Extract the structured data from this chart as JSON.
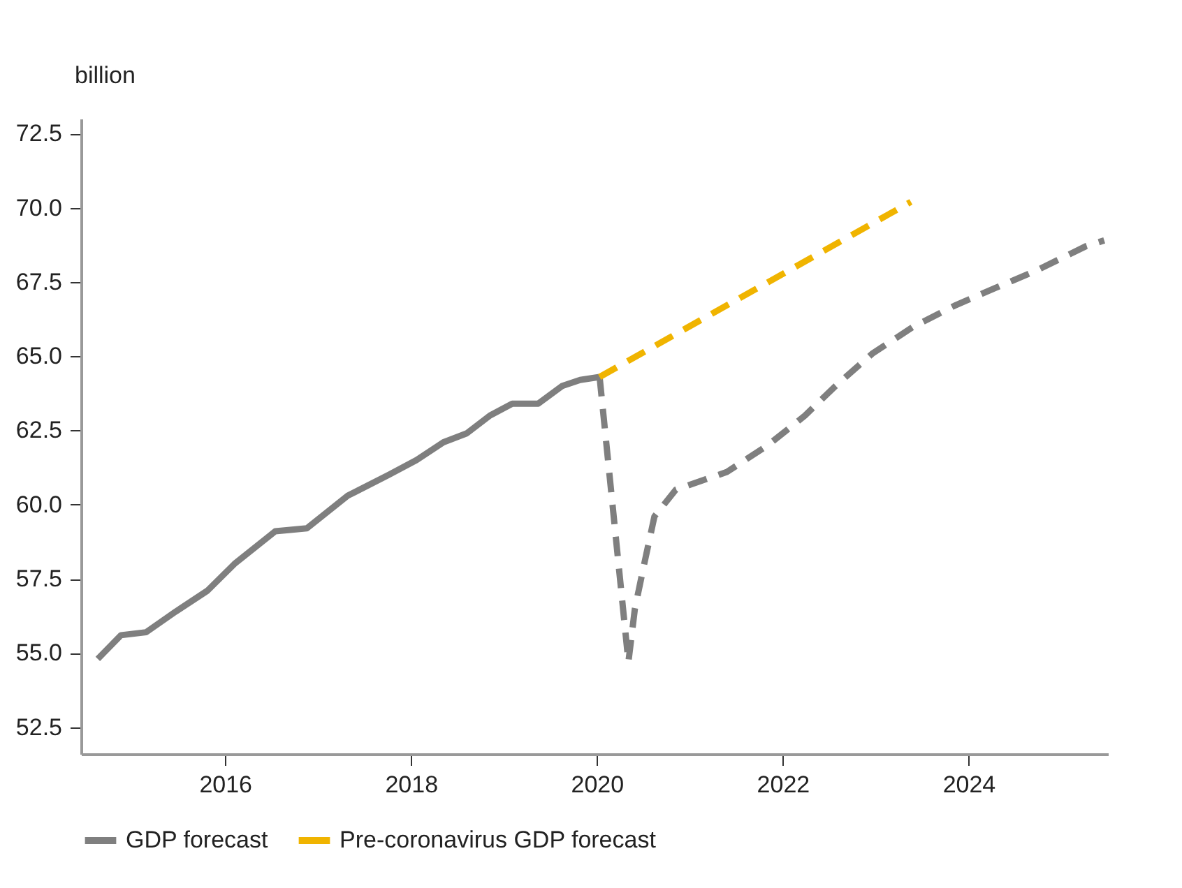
{
  "chart_data": {
    "type": "line",
    "ylabel": "billion",
    "xlim": [
      2014.45,
      2025.5
    ],
    "xticks": [
      2016,
      2018,
      2020,
      2022,
      2024
    ],
    "ylim": [
      51.6,
      73.0
    ],
    "yticks": [
      52.5,
      {
        "value": 55,
        "label": "55.0"
      },
      57.5,
      {
        "value": 60,
        "label": "60.0"
      },
      62.5,
      {
        "value": 65,
        "label": "65.0"
      },
      67.5,
      {
        "value": 70,
        "label": "70.0"
      },
      72.5
    ],
    "grid": false,
    "legend": "bottom",
    "marker": "none",
    "series": [
      {
        "name": "GDP forecast",
        "color": "#7f7f7f",
        "line_style": "solid",
        "x": [
          2014.63,
          2014.88,
          2015.15,
          2015.47,
          2015.81,
          2016.1,
          2016.54,
          2016.88,
          2017.32,
          2017.76,
          2018.06,
          2018.35,
          2018.6,
          2018.85,
          2019.09,
          2019.37,
          2019.63,
          2019.82,
          2020.03
        ],
        "values": [
          54.8,
          55.6,
          55.7,
          56.4,
          57.1,
          58.0,
          59.1,
          59.2,
          60.3,
          61.0,
          61.5,
          62.1,
          62.4,
          63.0,
          63.4,
          63.4,
          64.0,
          64.2,
          64.3
        ]
      },
      {
        "color": "#7f7f7f",
        "line_style": "dashed",
        "x": [
          2020.03,
          2020.34,
          2020.41,
          2020.51,
          2020.62,
          2020.85,
          2021.4,
          2021.84,
          2022.24,
          2022.57,
          2022.97,
          2023.41,
          2023.85,
          2024.29,
          2024.74,
          2025.26,
          2025.46
        ],
        "values": [
          64.3,
          54.7,
          56.5,
          58.0,
          59.6,
          60.5,
          61.1,
          62.0,
          63.0,
          64.0,
          65.1,
          66.0,
          66.7,
          67.3,
          67.9,
          68.7,
          68.9
        ]
      },
      {
        "name": "Pre-coronavirus GDP forecast",
        "color": "#f0b400",
        "line_style": "dashed",
        "x": [
          2020.03,
          2023.38
        ],
        "values": [
          64.3,
          70.2
        ]
      }
    ]
  }
}
